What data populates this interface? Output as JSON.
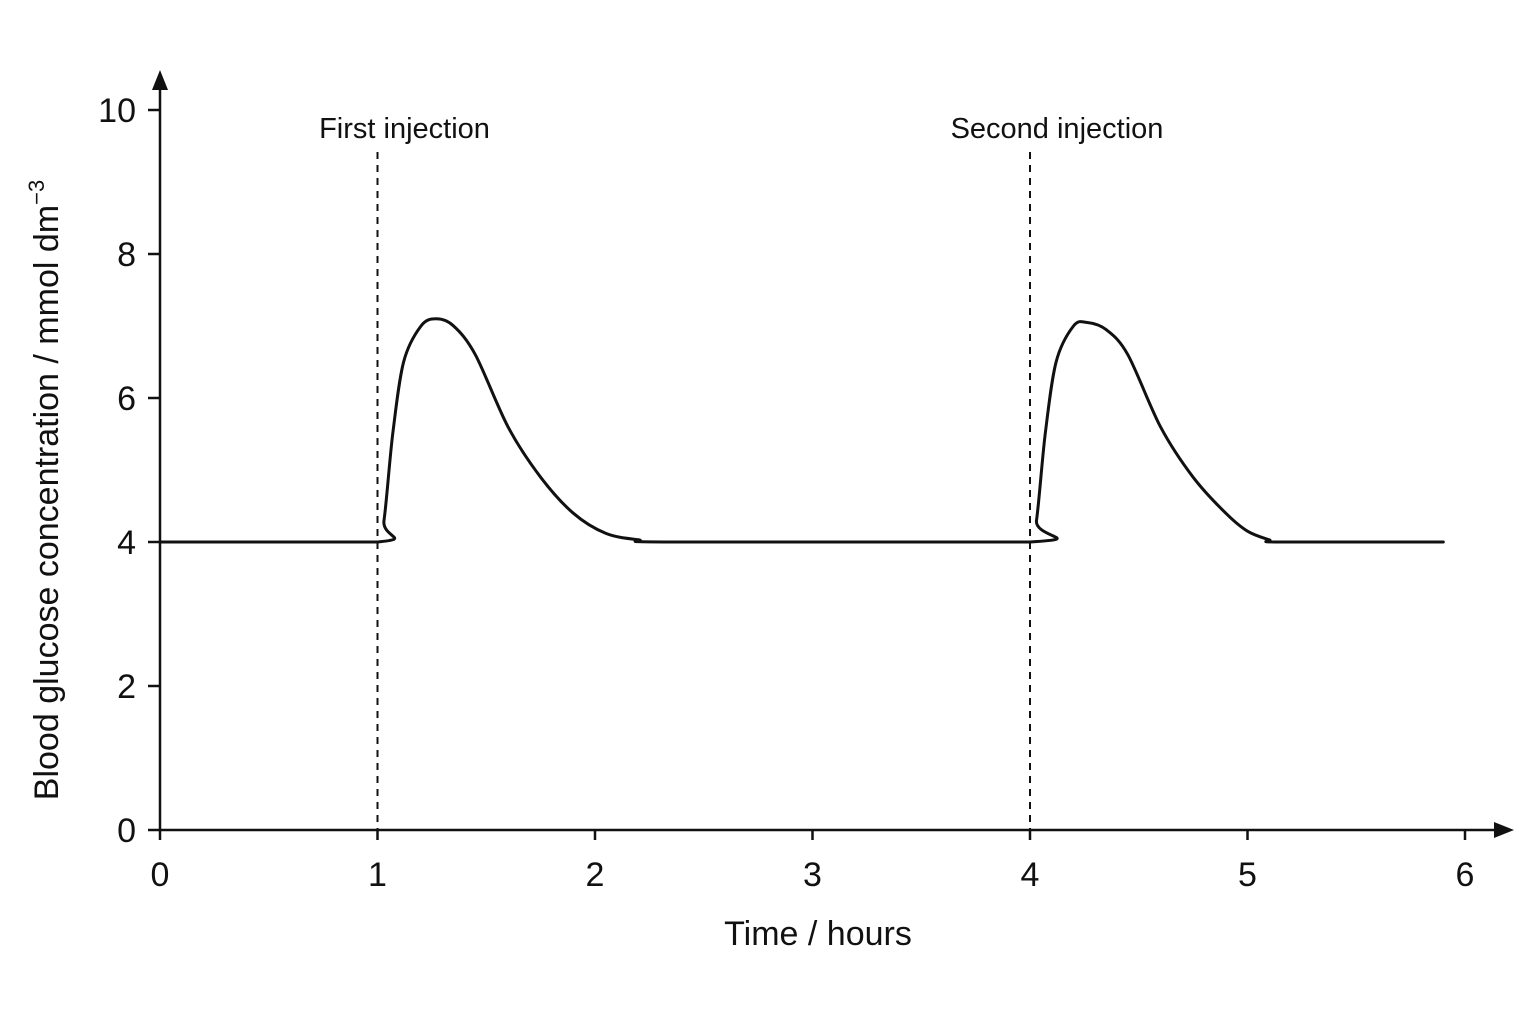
{
  "chart_data": {
    "type": "line",
    "title": "",
    "xlabel": "Time / hours",
    "ylabel": "Blood glucose concentration / mmol dm",
    "ylabel_superscript": "−3",
    "xlim": [
      0,
      6
    ],
    "ylim": [
      0,
      10
    ],
    "x_ticks": [
      "0",
      "1",
      "2",
      "3",
      "4",
      "5",
      "6"
    ],
    "y_ticks": [
      "0",
      "2",
      "4",
      "6",
      "8",
      "10"
    ],
    "grid": false,
    "legend": "none",
    "annotations": [
      {
        "label": "First injection",
        "x": 1
      },
      {
        "label": "Second injection",
        "x": 4
      }
    ],
    "series": [
      {
        "color": "#111111",
        "points": [
          [
            0,
            4.0
          ],
          [
            1.0,
            4.0
          ],
          [
            1.03,
            4.3
          ],
          [
            1.07,
            5.5
          ],
          [
            1.12,
            6.5
          ],
          [
            1.2,
            7.0
          ],
          [
            1.27,
            7.1
          ],
          [
            1.35,
            7.0
          ],
          [
            1.45,
            6.6
          ],
          [
            1.6,
            5.6
          ],
          [
            1.75,
            4.9
          ],
          [
            1.9,
            4.4
          ],
          [
            2.05,
            4.12
          ],
          [
            2.2,
            4.03
          ],
          [
            2.35,
            4.0
          ],
          [
            4.0,
            4.0
          ],
          [
            4.03,
            4.3
          ],
          [
            4.07,
            5.5
          ],
          [
            4.12,
            6.5
          ],
          [
            4.2,
            7.0
          ],
          [
            4.26,
            7.05
          ],
          [
            4.35,
            6.95
          ],
          [
            4.45,
            6.6
          ],
          [
            4.6,
            5.6
          ],
          [
            4.75,
            4.9
          ],
          [
            4.9,
            4.4
          ],
          [
            5.0,
            4.15
          ],
          [
            5.1,
            4.03
          ],
          [
            5.15,
            4.0
          ],
          [
            5.9,
            4.0
          ]
        ]
      }
    ]
  }
}
